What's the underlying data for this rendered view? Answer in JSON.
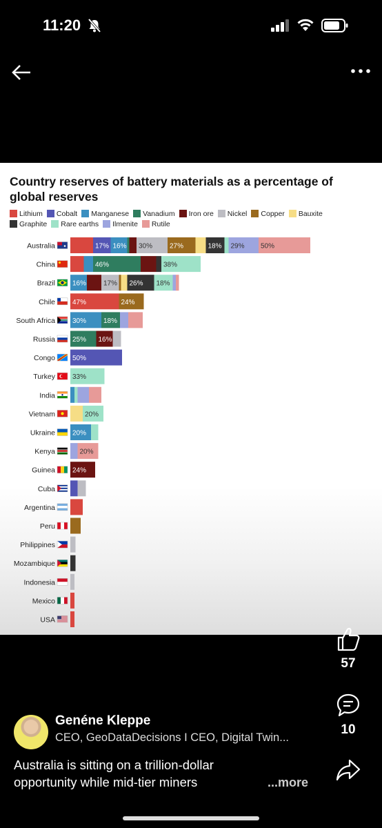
{
  "status": {
    "time": "11:20"
  },
  "chart_data": {
    "type": "bar",
    "title": "Country reserves of battery materials as a percentage of global reserves",
    "materials": [
      {
        "name": "Lithium",
        "color": "#d9473f"
      },
      {
        "name": "Cobalt",
        "color": "#5456b4"
      },
      {
        "name": "Manganese",
        "color": "#3b8fc0"
      },
      {
        "name": "Vanadium",
        "color": "#2f7d5f"
      },
      {
        "name": "Iron ore",
        "color": "#6b1412"
      },
      {
        "name": "Nickel",
        "color": "#bdbdc3"
      },
      {
        "name": "Copper",
        "color": "#9a6a1e"
      },
      {
        "name": "Bauxite",
        "color": "#f6dd86"
      },
      {
        "name": "Graphite",
        "color": "#333333"
      },
      {
        "name": "Rare earths",
        "color": "#9ee2c8"
      },
      {
        "name": "Ilmenite",
        "color": "#9da5df"
      },
      {
        "name": "Rutile",
        "color": "#e79a98"
      }
    ],
    "countries": [
      {
        "name": "Australia",
        "flag": "au",
        "segments": [
          [
            "Lithium",
            22
          ],
          [
            "Cobalt",
            17,
            "17%"
          ],
          [
            "Manganese",
            16,
            "16%"
          ],
          [
            "Vanadium",
            2
          ],
          [
            "Iron ore",
            7
          ],
          [
            "Nickel",
            30,
            "30%"
          ],
          [
            "Copper",
            27,
            "27%"
          ],
          [
            "Bauxite",
            10
          ],
          [
            "Graphite",
            18,
            "18%"
          ],
          [
            "Rare earths",
            4
          ],
          [
            "Ilmenite",
            29,
            "29%"
          ],
          [
            "Rutile",
            50,
            "50%"
          ]
        ]
      },
      {
        "name": "China",
        "flag": "cn",
        "segments": [
          [
            "Lithium",
            13
          ],
          [
            "Manganese",
            9
          ],
          [
            "Vanadium",
            46,
            "46%"
          ],
          [
            "Iron ore",
            15
          ],
          [
            "Graphite",
            5
          ],
          [
            "Rare earths",
            38,
            "38%"
          ]
        ]
      },
      {
        "name": "Brazil",
        "flag": "br",
        "segments": [
          [
            "Manganese",
            16,
            "16%"
          ],
          [
            "Iron ore",
            14
          ],
          [
            "Nickel",
            17,
            "17%"
          ],
          [
            "Copper",
            2
          ],
          [
            "Bauxite",
            6
          ],
          [
            "Graphite",
            26,
            "26%"
          ],
          [
            "Rare earths",
            18,
            "18%"
          ],
          [
            "Ilmenite",
            3
          ],
          [
            "Rutile",
            3
          ]
        ]
      },
      {
        "name": "Chile",
        "flag": "cl",
        "segments": [
          [
            "Lithium",
            47,
            "47%"
          ],
          [
            "Copper",
            24,
            "24%"
          ]
        ]
      },
      {
        "name": "South Africa",
        "flag": "za",
        "segments": [
          [
            "Manganese",
            30,
            "30%"
          ],
          [
            "Vanadium",
            18,
            "18%"
          ],
          [
            "Ilmenite",
            8
          ],
          [
            "Rutile",
            14
          ]
        ]
      },
      {
        "name": "Russia",
        "flag": "ru",
        "segments": [
          [
            "Vanadium",
            25,
            "25%"
          ],
          [
            "Iron ore",
            16,
            "16%"
          ],
          [
            "Nickel",
            8
          ]
        ]
      },
      {
        "name": "Congo",
        "flag": "cd",
        "segments": [
          [
            "Cobalt",
            50,
            "50%"
          ]
        ]
      },
      {
        "name": "Turkey",
        "flag": "tr",
        "segments": [
          [
            "Rare earths",
            33,
            "33%"
          ]
        ]
      },
      {
        "name": "India",
        "flag": "in",
        "segments": [
          [
            "Manganese",
            4
          ],
          [
            "Rare earths",
            3
          ],
          [
            "Ilmenite",
            11
          ],
          [
            "Rutile",
            12
          ]
        ]
      },
      {
        "name": "Vietnam",
        "flag": "vn",
        "segments": [
          [
            "Bauxite",
            12
          ],
          [
            "Rare earths",
            20,
            "20%"
          ]
        ]
      },
      {
        "name": "Ukraine",
        "flag": "ua",
        "segments": [
          [
            "Manganese",
            20,
            "20%"
          ],
          [
            "Rare earths",
            7
          ]
        ]
      },
      {
        "name": "Kenya",
        "flag": "ke",
        "segments": [
          [
            "Ilmenite",
            7
          ],
          [
            "Rutile",
            20,
            "20%"
          ]
        ]
      },
      {
        "name": "Guinea",
        "flag": "gn",
        "segments": [
          [
            "Iron ore",
            24,
            "24%"
          ]
        ]
      },
      {
        "name": "Cuba",
        "flag": "cu",
        "segments": [
          [
            "Cobalt",
            7
          ],
          [
            "Nickel",
            8
          ]
        ]
      },
      {
        "name": "Argentina",
        "flag": "ar",
        "segments": [
          [
            "Lithium",
            12
          ]
        ]
      },
      {
        "name": "Peru",
        "flag": "pe",
        "segments": [
          [
            "Copper",
            10
          ]
        ]
      },
      {
        "name": "Philippines",
        "flag": "ph",
        "segments": [
          [
            "Nickel",
            5
          ]
        ]
      },
      {
        "name": "Mozambique",
        "flag": "mz",
        "segments": [
          [
            "Graphite",
            5
          ]
        ]
      },
      {
        "name": "Indonesia",
        "flag": "id",
        "segments": [
          [
            "Nickel",
            4
          ]
        ]
      },
      {
        "name": "Mexico",
        "flag": "mx",
        "segments": [
          [
            "Lithium",
            4
          ]
        ]
      },
      {
        "name": "USA",
        "flag": "us",
        "segments": [
          [
            "Lithium",
            4
          ]
        ]
      }
    ]
  },
  "actions": {
    "like_count": "57",
    "comment_count": "10"
  },
  "author": {
    "name": "Genéne Kleppe",
    "title": "CEO, GeoDataDecisions I CEO, Digital Twin..."
  },
  "caption": {
    "text": "Australia is sitting on a trillion-dollar opportunity while mid-tier miners",
    "more": "...more"
  }
}
